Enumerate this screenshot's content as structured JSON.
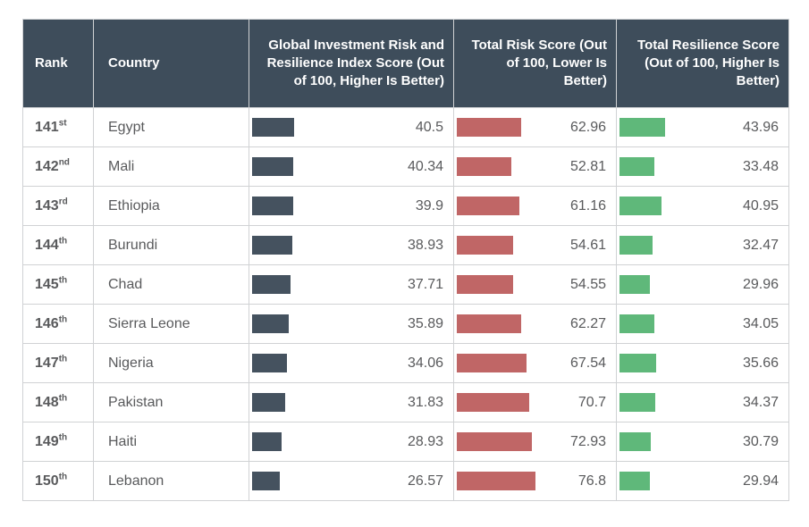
{
  "colors": {
    "header_bg": "#3e4d5b",
    "header_text": "#ffffff",
    "index_bar": "#45525f",
    "risk_bar": "#c06666",
    "resilience_bar": "#5fb87a",
    "body_text": "#595a5c",
    "grid_line": "#d0d2d4"
  },
  "chart_data": {
    "type": "table",
    "columns": [
      "Rank",
      "Country",
      "Global Investment Risk and Resilience Index Score (Out of 100, Higher Is Better)",
      "Total Risk Score (Out of 100, Lower Is Better)",
      "Total Resilience Score (Out of 100, Higher Is Better)"
    ],
    "score_range": [
      0,
      100
    ],
    "rows": [
      {
        "rank": 141,
        "ordinal": "st",
        "country": "Egypt",
        "index_score": 40.5,
        "risk_score": 62.96,
        "resilience_score": 43.96
      },
      {
        "rank": 142,
        "ordinal": "nd",
        "country": "Mali",
        "index_score": 40.34,
        "risk_score": 52.81,
        "resilience_score": 33.48
      },
      {
        "rank": 143,
        "ordinal": "rd",
        "country": "Ethiopia",
        "index_score": 39.9,
        "risk_score": 61.16,
        "resilience_score": 40.95
      },
      {
        "rank": 144,
        "ordinal": "th",
        "country": "Burundi",
        "index_score": 38.93,
        "risk_score": 54.61,
        "resilience_score": 32.47
      },
      {
        "rank": 145,
        "ordinal": "th",
        "country": "Chad",
        "index_score": 37.71,
        "risk_score": 54.55,
        "resilience_score": 29.96
      },
      {
        "rank": 146,
        "ordinal": "th",
        "country": "Sierra Leone",
        "index_score": 35.89,
        "risk_score": 62.27,
        "resilience_score": 34.05
      },
      {
        "rank": 147,
        "ordinal": "th",
        "country": "Nigeria",
        "index_score": 34.06,
        "risk_score": 67.54,
        "resilience_score": 35.66
      },
      {
        "rank": 148,
        "ordinal": "th",
        "country": "Pakistan",
        "index_score": 31.83,
        "risk_score": 70.7,
        "resilience_score": 34.37
      },
      {
        "rank": 149,
        "ordinal": "th",
        "country": "Haiti",
        "index_score": 28.93,
        "risk_score": 72.93,
        "resilience_score": 30.79
      },
      {
        "rank": 150,
        "ordinal": "th",
        "country": "Lebanon",
        "index_score": 26.57,
        "risk_score": 76.8,
        "resilience_score": 29.94
      }
    ]
  }
}
